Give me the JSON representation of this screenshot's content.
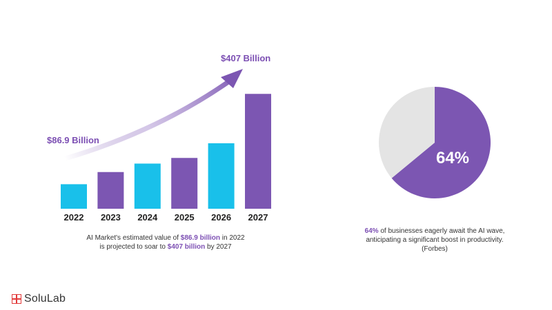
{
  "chart_data": [
    {
      "type": "bar",
      "categories": [
        "2022",
        "2023",
        "2024",
        "2025",
        "2026",
        "2027"
      ],
      "values": [
        86.9,
        130,
        160,
        180,
        232,
        407
      ],
      "title": "",
      "xlabel": "",
      "ylabel": "",
      "annotations": {
        "start": "$86.9 Billion",
        "end": "$407 Billion"
      },
      "colors": {
        "highlight": "#19c0ea",
        "base": "#7c56b2",
        "label": "#7c4fb3"
      },
      "bar_colors": [
        "highlight",
        "base",
        "highlight",
        "base",
        "highlight",
        "base"
      ],
      "caption": {
        "line1_pre": "AI Market's estimated value of ",
        "line1_hl": "$86.9 billion",
        "line1_post": " in 2022",
        "line2_pre": "is projected to soar to ",
        "line2_hl": "$407 billion",
        "line2_post": " by 2027"
      }
    },
    {
      "type": "pie",
      "slices": [
        {
          "value": 64,
          "color": "#7c56b2"
        },
        {
          "value": 36,
          "color": "#e4e4e4"
        }
      ],
      "center_label": "64%",
      "caption": {
        "hl": "64%",
        "line1_rest": " of businesses eagerly await the AI wave,",
        "line2": "anticipating a significant boost in productivity.",
        "line3": "(Forbes)"
      }
    }
  ],
  "brand": {
    "name": "SoluLab",
    "color": "#e23a3a"
  }
}
